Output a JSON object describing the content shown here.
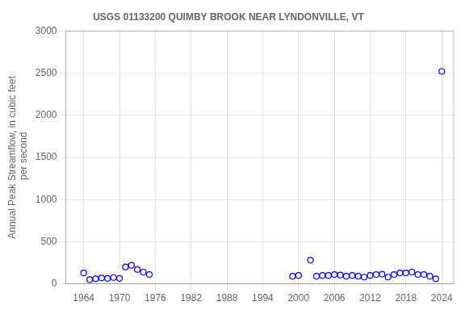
{
  "chart_data": {
    "type": "scatter",
    "title": "USGS 01133200 QUIMBY BROOK NEAR LYNDONVILLE, VT",
    "ylabel": "Annual Peak Streamflow, in cubic feet\n per second",
    "x": [
      1964,
      1965,
      1966,
      1967,
      1968,
      1969,
      1970,
      1971,
      1972,
      1973,
      1974,
      1975,
      1999,
      2000,
      2002,
      2003,
      2004,
      2005,
      2006,
      2007,
      2008,
      2009,
      2010,
      2011,
      2012,
      2013,
      2014,
      2015,
      2016,
      2017,
      2018,
      2019,
      2020,
      2021,
      2022,
      2023,
      2024
    ],
    "values": [
      130,
      50,
      60,
      70,
      65,
      75,
      65,
      200,
      220,
      170,
      140,
      110,
      90,
      100,
      280,
      90,
      100,
      100,
      110,
      105,
      90,
      100,
      90,
      80,
      100,
      110,
      115,
      80,
      110,
      130,
      130,
      140,
      110,
      110,
      90,
      60,
      2520
    ],
    "color": "#0000ff",
    "marker": "circle",
    "xlim": [
      1961,
      2026
    ],
    "xticks": [
      1964,
      1970,
      1976,
      1982,
      1988,
      1994,
      2000,
      2006,
      2012,
      2018,
      2024
    ],
    "ylim": [
      0,
      3000
    ],
    "yticks": [
      0,
      500,
      1000,
      1500,
      2000,
      2500,
      3000
    ],
    "grid": true
  }
}
